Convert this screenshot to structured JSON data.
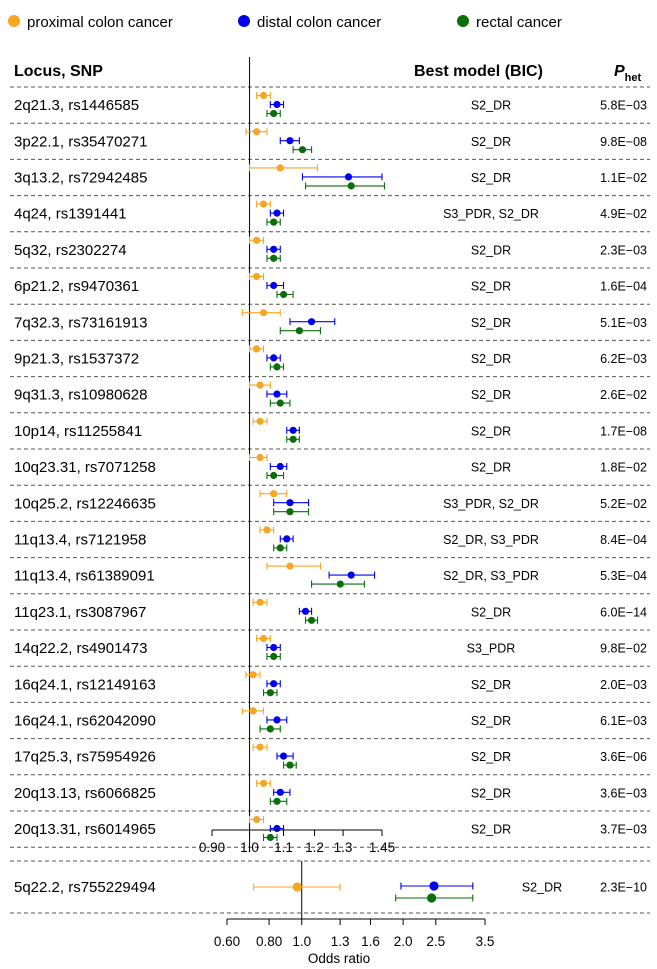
{
  "legend": [
    {
      "name": "proximal colon cancer",
      "color": "#f5a623"
    },
    {
      "name": "distal colon cancer",
      "color": "#0000ee"
    },
    {
      "name": "rectal cancer",
      "color": "#0a6e0a"
    }
  ],
  "headers": {
    "locus": "Locus, SNP",
    "model": "Best model (BIC)",
    "p_main": "P",
    "p_sub": "het"
  },
  "xlabel": "Odds ratio",
  "chart_data": [
    {
      "type": "forest",
      "scale": "log",
      "xlim": [
        0.9,
        1.45
      ],
      "xticks": [
        0.9,
        1.0,
        1.1,
        1.2,
        1.3,
        1.45
      ],
      "xtick_labels": [
        "0.90",
        "1.0",
        "1.1",
        "1.2",
        "1.3",
        "1.45"
      ],
      "reference": 1.0,
      "rows": [
        {
          "locus": "2q21.3, rs1446585",
          "model": "S2_DR",
          "p": "5.8E−03",
          "prox": [
            1.04,
            1.02,
            1.06
          ],
          "dist": [
            1.08,
            1.06,
            1.1
          ],
          "rect": [
            1.07,
            1.05,
            1.09
          ]
        },
        {
          "locus": "3p22.1, rs35470271",
          "model": "S2_DR",
          "p": "9.8E−08",
          "prox": [
            1.02,
            0.99,
            1.05
          ],
          "dist": [
            1.12,
            1.09,
            1.15
          ],
          "rect": [
            1.16,
            1.13,
            1.19
          ]
        },
        {
          "locus": "3q13.2, rs72942485",
          "model": "S2_DR",
          "p": "1.1E−02",
          "prox": [
            1.09,
            1.0,
            1.21
          ],
          "dist": [
            1.32,
            1.16,
            1.45
          ],
          "rect": [
            1.33,
            1.17,
            1.46
          ]
        },
        {
          "locus": "4q24, rs1391441",
          "model": "S3_PDR, S2_DR",
          "p": "4.9E−02",
          "prox": [
            1.04,
            1.02,
            1.06
          ],
          "dist": [
            1.08,
            1.06,
            1.1
          ],
          "rect": [
            1.07,
            1.05,
            1.09
          ]
        },
        {
          "locus": "5q32, rs2302274",
          "model": "S2_DR",
          "p": "2.3E−03",
          "prox": [
            1.02,
            1.0,
            1.04
          ],
          "dist": [
            1.07,
            1.05,
            1.09
          ],
          "rect": [
            1.07,
            1.05,
            1.09
          ]
        },
        {
          "locus": "6p21.2, rs9470361",
          "model": "S2_DR",
          "p": "1.6E−04",
          "prox": [
            1.02,
            1.0,
            1.04
          ],
          "dist": [
            1.07,
            1.05,
            1.1
          ],
          "rect": [
            1.1,
            1.08,
            1.13
          ]
        },
        {
          "locus": "7q32.3, rs73161913",
          "model": "S2_DR",
          "p": "5.1E−03",
          "prox": [
            1.04,
            0.98,
            1.09
          ],
          "dist": [
            1.19,
            1.12,
            1.27
          ],
          "rect": [
            1.15,
            1.09,
            1.22
          ]
        },
        {
          "locus": "9p21.3, rs1537372",
          "model": "S2_DR",
          "p": "6.2E−03",
          "prox": [
            1.02,
            1.0,
            1.04
          ],
          "dist": [
            1.07,
            1.05,
            1.09
          ],
          "rect": [
            1.08,
            1.06,
            1.1
          ]
        },
        {
          "locus": "9q31.3, rs10980628",
          "model": "S2_DR",
          "p": "2.6E−02",
          "prox": [
            1.03,
            1.0,
            1.06
          ],
          "dist": [
            1.08,
            1.05,
            1.11
          ],
          "rect": [
            1.09,
            1.06,
            1.12
          ]
        },
        {
          "locus": "10p14, rs11255841",
          "model": "S2_DR",
          "p": "1.7E−08",
          "prox": [
            1.03,
            1.01,
            1.05
          ],
          "dist": [
            1.13,
            1.11,
            1.15
          ],
          "rect": [
            1.13,
            1.11,
            1.15
          ]
        },
        {
          "locus": "10q23.31, rs7071258",
          "model": "S2_DR",
          "p": "1.8E−02",
          "prox": [
            1.03,
            1.0,
            1.05
          ],
          "dist": [
            1.09,
            1.06,
            1.11
          ],
          "rect": [
            1.07,
            1.05,
            1.1
          ]
        },
        {
          "locus": "10q25.2, rs12246635",
          "model": "S3_PDR, S2_DR",
          "p": "5.2E−02",
          "prox": [
            1.07,
            1.03,
            1.11
          ],
          "dist": [
            1.12,
            1.07,
            1.18
          ],
          "rect": [
            1.12,
            1.07,
            1.18
          ]
        },
        {
          "locus": "11q13.4, rs7121958",
          "model": "S2_DR, S3_PDR",
          "p": "8.4E−04",
          "prox": [
            1.05,
            1.03,
            1.07
          ],
          "dist": [
            1.11,
            1.09,
            1.13
          ],
          "rect": [
            1.09,
            1.07,
            1.11
          ]
        },
        {
          "locus": "11q13.4, rs61389091",
          "model": "S2_DR, S3_PDR",
          "p": "5.3E−04",
          "prox": [
            1.12,
            1.05,
            1.22
          ],
          "dist": [
            1.33,
            1.25,
            1.42
          ],
          "rect": [
            1.29,
            1.19,
            1.38
          ]
        },
        {
          "locus": "11q23.1, rs3087967",
          "model": "S2_DR",
          "p": "6.0E−14",
          "prox": [
            1.03,
            1.01,
            1.05
          ],
          "dist": [
            1.17,
            1.15,
            1.19
          ],
          "rect": [
            1.19,
            1.17,
            1.21
          ]
        },
        {
          "locus": "14q22.2, rs4901473",
          "model": "S3_PDR",
          "p": "9.8E−02",
          "prox": [
            1.04,
            1.02,
            1.06
          ],
          "dist": [
            1.07,
            1.05,
            1.09
          ],
          "rect": [
            1.07,
            1.05,
            1.09
          ]
        },
        {
          "locus": "16q24.1, rs12149163",
          "model": "S2_DR",
          "p": "2.0E−03",
          "prox": [
            1.01,
            0.99,
            1.03
          ],
          "dist": [
            1.07,
            1.05,
            1.09
          ],
          "rect": [
            1.06,
            1.04,
            1.08
          ]
        },
        {
          "locus": "16q24.1, rs62042090",
          "model": "S2_DR",
          "p": "6.1E−03",
          "prox": [
            1.01,
            0.98,
            1.04
          ],
          "dist": [
            1.08,
            1.05,
            1.11
          ],
          "rect": [
            1.06,
            1.03,
            1.09
          ]
        },
        {
          "locus": "17q25.3, rs75954926",
          "model": "S2_DR",
          "p": "3.6E−06",
          "prox": [
            1.03,
            1.01,
            1.05
          ],
          "dist": [
            1.1,
            1.08,
            1.13
          ],
          "rect": [
            1.12,
            1.1,
            1.14
          ]
        },
        {
          "locus": "20q13.13, rs6066825",
          "model": "S2_DR",
          "p": "3.6E−03",
          "prox": [
            1.04,
            1.02,
            1.06
          ],
          "dist": [
            1.09,
            1.07,
            1.12
          ],
          "rect": [
            1.08,
            1.06,
            1.11
          ]
        },
        {
          "locus": "20q13.31, rs6014965",
          "model": "S2_DR",
          "p": "3.7E−03",
          "prox": [
            1.02,
            1.0,
            1.04
          ],
          "dist": [
            1.08,
            1.06,
            1.1
          ],
          "rect": [
            1.06,
            1.04,
            1.08
          ]
        }
      ]
    },
    {
      "type": "forest",
      "scale": "log",
      "xlim": [
        0.6,
        3.5
      ],
      "xticks": [
        0.6,
        0.8,
        1.0,
        1.3,
        1.6,
        2.0,
        2.5,
        3.5
      ],
      "xtick_labels": [
        "0.60",
        "0.80",
        "1.0",
        "1.3",
        "1.6",
        "2.0",
        "2.5",
        "3.5"
      ],
      "reference": 1.0,
      "rows": [
        {
          "locus": "5q22.2, rs755229494",
          "model": "S2_DR",
          "p": "2.3E−10",
          "prox": [
            0.97,
            0.72,
            1.3
          ],
          "dist": [
            2.47,
            1.97,
            3.22
          ],
          "rect": [
            2.43,
            1.9,
            3.22
          ]
        }
      ]
    }
  ]
}
